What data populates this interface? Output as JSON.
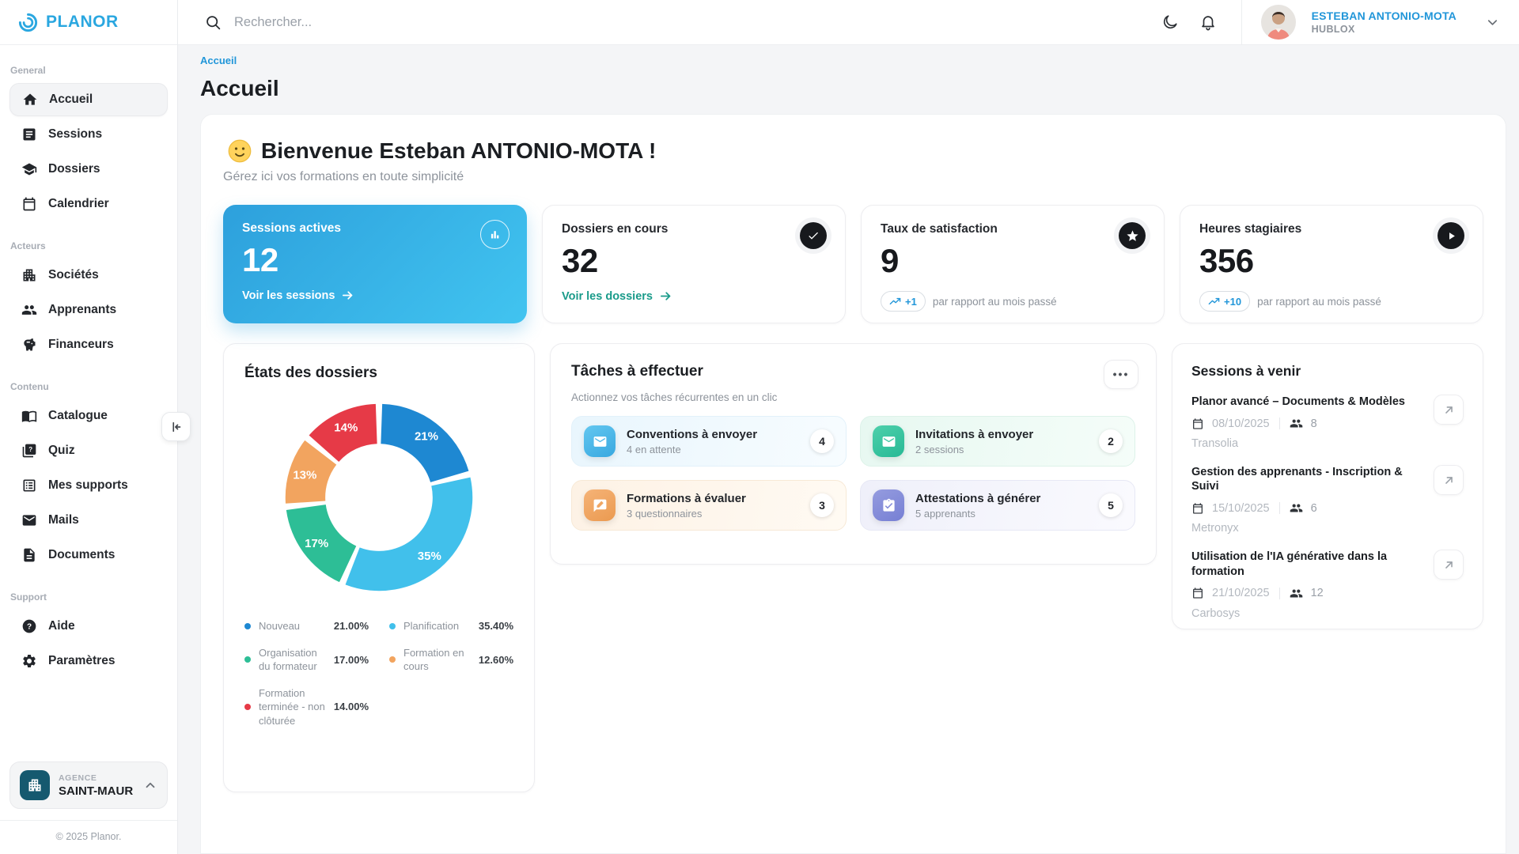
{
  "app": {
    "name": "PLANOR",
    "copyright": "© 2025 Planor."
  },
  "topbar": {
    "search_placeholder": "Rechercher...",
    "user_name": "ESTEBAN ANTONIO-MOTA",
    "user_org": "HUBLOX"
  },
  "sidebar": {
    "sections": [
      {
        "label": "General",
        "items": [
          {
            "label": "Accueil"
          },
          {
            "label": "Sessions"
          },
          {
            "label": "Dossiers"
          },
          {
            "label": "Calendrier"
          }
        ]
      },
      {
        "label": "Acteurs",
        "items": [
          {
            "label": "Sociétés"
          },
          {
            "label": "Apprenants"
          },
          {
            "label": "Financeurs"
          }
        ]
      },
      {
        "label": "Contenu",
        "items": [
          {
            "label": "Catalogue"
          },
          {
            "label": "Quiz"
          },
          {
            "label": "Mes supports"
          },
          {
            "label": "Mails"
          },
          {
            "label": "Documents"
          }
        ]
      },
      {
        "label": "Support",
        "items": [
          {
            "label": "Aide"
          },
          {
            "label": "Paramètres"
          }
        ]
      }
    ],
    "agency": {
      "kicker": "AGENCE",
      "name": "SAINT-MAUR"
    }
  },
  "page": {
    "breadcrumb": "Accueil",
    "title": "Accueil"
  },
  "welcome": {
    "emoji": "🙂",
    "title": "Bienvenue Esteban ANTONIO-MOTA !",
    "subtitle": "Gérez ici vos formations en toute simplicité"
  },
  "stats": [
    {
      "title": "Sessions actives",
      "value": "12",
      "link": "Voir les sessions"
    },
    {
      "title": "Dossiers en cours",
      "value": "32",
      "link": "Voir les dossiers"
    },
    {
      "title": "Taux de satisfaction",
      "value": "9",
      "badge": "+1",
      "badge_text": "par rapport au mois passé"
    },
    {
      "title": "Heures stagiaires",
      "value": "356",
      "badge": "+10",
      "badge_text": "par rapport au mois passé"
    }
  ],
  "chart_data": {
    "type": "pie",
    "donut": true,
    "title": "États des dossiers",
    "labels": [
      "Nouveau",
      "Planification",
      "Organisation du formateur",
      "Formation en cours",
      "Formation terminée - non clôturée"
    ],
    "values": [
      21.0,
      35.4,
      17.0,
      12.6,
      14.0
    ],
    "slice_labels": [
      "21%",
      "35%",
      "17%",
      "13%",
      "14%"
    ],
    "legend_values": [
      "21.00%",
      "35.40%",
      "17.00%",
      "12.60%",
      "14.00%"
    ],
    "colors": [
      "#1e88d2",
      "#41c0eb",
      "#2dbe96",
      "#f2a45f",
      "#e63a47"
    ],
    "legend_position": "bottom"
  },
  "tasks": {
    "title": "Tâches à effectuer",
    "menu": "•••",
    "subtitle": "Actionnez vos tâches récurrentes en un clic",
    "items": [
      {
        "title": "Conventions à envoyer",
        "subtitle": "4 en attente",
        "count": "4"
      },
      {
        "title": "Invitations à envoyer",
        "subtitle": "2 sessions",
        "count": "2"
      },
      {
        "title": "Formations à évaluer",
        "subtitle": "3 questionnaires",
        "count": "3"
      },
      {
        "title": "Attestations à générer",
        "subtitle": "5 apprenants",
        "count": "5"
      }
    ]
  },
  "upcoming": {
    "title": "Sessions à venir",
    "items": [
      {
        "title": "Planor avancé – Documents & Modèles",
        "date": "08/10/2025",
        "count": "8",
        "company": "Transolia"
      },
      {
        "title": "Gestion des apprenants - Inscription & Suivi",
        "date": "15/10/2025",
        "count": "6",
        "company": "Metronyx"
      },
      {
        "title": "Utilisation de l'IA générative dans la formation",
        "date": "21/10/2025",
        "count": "12",
        "company": "Carbosys"
      }
    ]
  },
  "colors": {
    "brand": "#29a9e1",
    "link_teal": "#1a9b8a",
    "badge_blue": "#2196d9",
    "primary_card_from": "#2da0dc",
    "primary_card_to": "#41c4f0"
  }
}
